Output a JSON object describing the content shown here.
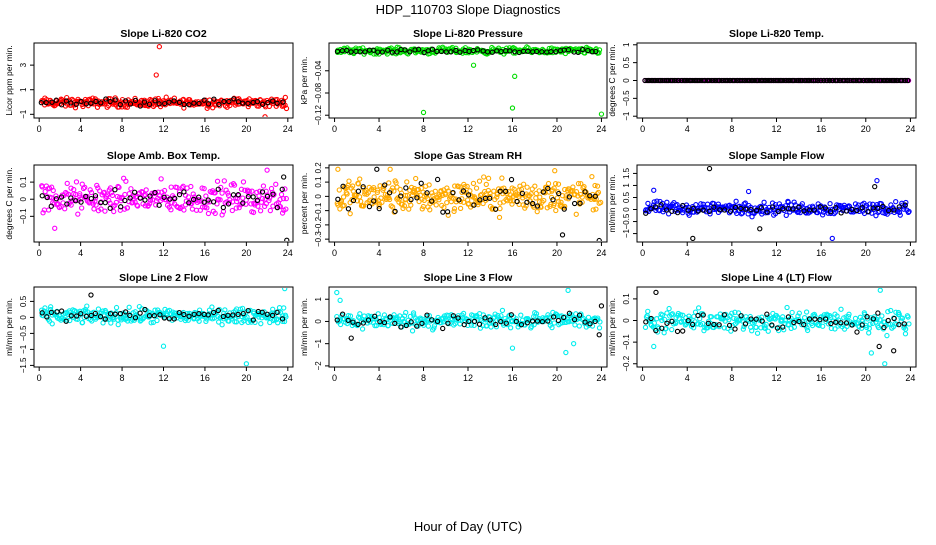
{
  "page": {
    "title": "HDP_110703  Slope Diagnostics",
    "xlabel": "Hour of Day (UTC)"
  },
  "chart_data": [
    {
      "type": "scatter",
      "title": "Slope Li-820 CO2",
      "ylabel": "Licor ppm per min.",
      "x_ticks": [
        0,
        4,
        8,
        12,
        16,
        20,
        24
      ],
      "xlim": [
        -0.5,
        24.5
      ],
      "y_ticks": [
        -1,
        1,
        3
      ],
      "ylim": [
        -1.3,
        4.8
      ],
      "series": [
        {
          "name": "dense",
          "color": "#ff0000",
          "band": [
            -0.6,
            0.5
          ],
          "density": 4,
          "extras": [
            [
              11.6,
              4.5
            ],
            [
              11.3,
              2.2
            ],
            [
              21.8,
              -1.2
            ]
          ]
        },
        {
          "name": "black",
          "color": "#000000",
          "band": [
            -0.4,
            0.4
          ],
          "density": 0.7,
          "extras": []
        }
      ]
    },
    {
      "type": "scatter",
      "title": "Slope Li-820 Pressure",
      "ylabel": "kPa per min.",
      "x_ticks": [
        0,
        4,
        8,
        12,
        16,
        20,
        24
      ],
      "xlim": [
        -0.5,
        24.5
      ],
      "y_ticks": [
        -0.12,
        -0.08,
        -0.04
      ],
      "ylim": [
        -0.125,
        0.01
      ],
      "series": [
        {
          "name": "dense",
          "color": "#00dd00",
          "band": [
            -0.012,
            0.004
          ],
          "density": 4,
          "extras": [
            [
              8.0,
              -0.115
            ],
            [
              16.0,
              -0.107
            ],
            [
              24.0,
              -0.118
            ],
            [
              16.2,
              -0.05
            ],
            [
              12.5,
              -0.03
            ]
          ]
        },
        {
          "name": "black",
          "color": "#000000",
          "band": [
            -0.01,
            0.0
          ],
          "density": 0.8,
          "extras": []
        }
      ]
    },
    {
      "type": "scatter",
      "title": "Slope Li-820 Temp.",
      "ylabel": "degrees C per min.",
      "x_ticks": [
        0,
        4,
        8,
        12,
        16,
        20,
        24
      ],
      "xlim": [
        -0.5,
        24.5
      ],
      "y_ticks": [
        -1.0,
        -0.5,
        0.0,
        0.5,
        1.0
      ],
      "ylim": [
        -1.05,
        1.05
      ],
      "series": [
        {
          "name": "dense",
          "color": "#ff00ff",
          "band": [
            0.0,
            0.0
          ],
          "density": 2.5,
          "extras": []
        },
        {
          "name": "black",
          "color": "#000000",
          "band": [
            0.0,
            0.0
          ],
          "density": 2.5,
          "extras": []
        }
      ]
    },
    {
      "type": "scatter",
      "title": "Slope Amb. Box Temp.",
      "ylabel": "degrees C per min.",
      "x_ticks": [
        0,
        4,
        8,
        12,
        16,
        20,
        24
      ],
      "xlim": [
        -0.5,
        24.5
      ],
      "y_ticks": [
        -0.1,
        0.0,
        0.1
      ],
      "ylim": [
        -0.25,
        0.2
      ],
      "series": [
        {
          "name": "dense",
          "color": "#ff00ff",
          "band": [
            -0.13,
            0.14
          ],
          "density": 4,
          "extras": [
            [
              22.0,
              0.17
            ],
            [
              1.5,
              -0.17
            ]
          ]
        },
        {
          "name": "black",
          "color": "#000000",
          "band": [
            -0.1,
            0.12
          ],
          "density": 0.7,
          "extras": [
            [
              23.9,
              -0.24
            ],
            [
              23.6,
              0.13
            ]
          ]
        }
      ]
    },
    {
      "type": "scatter",
      "title": "Slope Gas Stream RH",
      "ylabel": "percent per min.",
      "x_ticks": [
        0,
        4,
        8,
        12,
        16,
        20,
        24
      ],
      "xlim": [
        -0.5,
        24.5
      ],
      "y_ticks": [
        -0.3,
        -0.2,
        -0.1,
        0.0,
        0.1,
        0.2
      ],
      "ylim": [
        -0.32,
        0.22
      ],
      "series": [
        {
          "name": "dense",
          "color": "#ffaa00",
          "band": [
            -0.17,
            0.17
          ],
          "density": 5,
          "extras": [
            [
              0.3,
              0.19
            ],
            [
              5.0,
              0.19
            ],
            [
              19.8,
              0.18
            ]
          ]
        },
        {
          "name": "black",
          "color": "#000000",
          "band": [
            -0.15,
            0.15
          ],
          "density": 0.7,
          "extras": [
            [
              23.8,
              -0.31
            ],
            [
              20.5,
              -0.27
            ],
            [
              3.8,
              0.19
            ]
          ]
        }
      ]
    },
    {
      "type": "scatter",
      "title": "Slope Sample Flow",
      "ylabel": "ml/min per min.",
      "x_ticks": [
        0,
        4,
        8,
        12,
        16,
        20,
        24
      ],
      "xlim": [
        -0.5,
        24.5
      ],
      "y_ticks": [
        -1.0,
        -0.5,
        0.0,
        0.5,
        1.0,
        1.5
      ],
      "ylim": [
        -1.35,
        1.85
      ],
      "series": [
        {
          "name": "dense",
          "color": "#0000ff",
          "band": [
            -0.35,
            0.45
          ],
          "density": 4,
          "extras": [
            [
              1.0,
              0.8
            ],
            [
              21.0,
              1.2
            ],
            [
              17.0,
              -1.2
            ],
            [
              9.5,
              0.75
            ]
          ]
        },
        {
          "name": "black",
          "color": "#000000",
          "band": [
            -0.3,
            0.3
          ],
          "density": 0.7,
          "extras": [
            [
              6.0,
              1.7
            ],
            [
              4.5,
              -1.2
            ],
            [
              10.5,
              -0.8
            ],
            [
              20.8,
              0.95
            ]
          ]
        }
      ]
    },
    {
      "type": "scatter",
      "title": "Slope Line 2 Flow",
      "ylabel": "ml/min per min.",
      "x_ticks": [
        0,
        4,
        8,
        12,
        16,
        20,
        24
      ],
      "xlim": [
        -0.5,
        24.5
      ],
      "y_ticks": [
        -1.5,
        -1.0,
        -0.5,
        0.0,
        0.5
      ],
      "ylim": [
        -1.55,
        0.95
      ],
      "series": [
        {
          "name": "dense",
          "color": "#00eeee",
          "band": [
            -0.3,
            0.4
          ],
          "density": 4,
          "extras": [
            [
              20.0,
              -1.45
            ],
            [
              12.0,
              -0.9
            ],
            [
              23.7,
              0.9
            ]
          ]
        },
        {
          "name": "black",
          "color": "#000000",
          "band": [
            -0.2,
            0.35
          ],
          "density": 0.7,
          "extras": [
            [
              5.0,
              0.7
            ]
          ]
        }
      ]
    },
    {
      "type": "scatter",
      "title": "Slope Line 3 Flow",
      "ylabel": "ml/min per min.",
      "x_ticks": [
        0,
        4,
        8,
        12,
        16,
        20,
        24
      ],
      "xlim": [
        -0.5,
        24.5
      ],
      "y_ticks": [
        -2,
        -1,
        0,
        1
      ],
      "ylim": [
        -2.05,
        1.55
      ],
      "series": [
        {
          "name": "dense",
          "color": "#00eeee",
          "band": [
            -0.5,
            0.6
          ],
          "density": 4,
          "extras": [
            [
              0.2,
              1.3
            ],
            [
              21.0,
              1.4
            ],
            [
              20.8,
              -1.4
            ],
            [
              21.5,
              -1.0
            ],
            [
              16.0,
              -1.2
            ],
            [
              0.5,
              0.95
            ]
          ]
        },
        {
          "name": "black",
          "color": "#000000",
          "band": [
            -0.4,
            0.5
          ],
          "density": 0.7,
          "extras": [
            [
              23.8,
              -0.6
            ],
            [
              24.0,
              0.7
            ],
            [
              1.5,
              -0.75
            ]
          ]
        }
      ]
    },
    {
      "type": "scatter",
      "title": "Slope Line 4 (LT) Flow",
      "ylabel": "ml/min per min.",
      "x_ticks": [
        0,
        4,
        8,
        12,
        16,
        20,
        24
      ],
      "xlim": [
        -0.5,
        24.5
      ],
      "y_ticks": [
        -0.2,
        -0.1,
        0.0,
        0.1
      ],
      "ylim": [
        -0.215,
        0.155
      ],
      "series": [
        {
          "name": "dense",
          "color": "#00eeee",
          "band": [
            -0.08,
            0.07
          ],
          "density": 4,
          "extras": [
            [
              21.3,
              0.14
            ],
            [
              1.0,
              -0.12
            ],
            [
              20.5,
              -0.15
            ],
            [
              21.7,
              -0.2
            ]
          ]
        },
        {
          "name": "black",
          "color": "#000000",
          "band": [
            -0.07,
            0.06
          ],
          "density": 0.7,
          "extras": [
            [
              1.2,
              0.13
            ],
            [
              22.5,
              -0.14
            ],
            [
              21.2,
              -0.12
            ]
          ]
        }
      ]
    }
  ]
}
